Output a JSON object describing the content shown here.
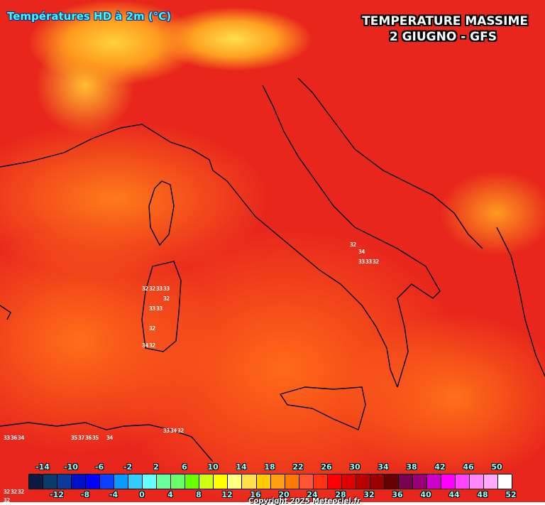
{
  "header": {
    "product_title": "Températures HD à 2m (°C)",
    "overlay_title_line1": "TEMPERATURE MASSIME",
    "overlay_title_line2": "2 GIUGNO - GFS"
  },
  "map": {
    "hotspots": [
      {
        "region": "campania",
        "values": [
          "32",
          "34",
          "33",
          "33",
          "32"
        ]
      },
      {
        "region": "sardinia",
        "values": [
          "32",
          "32",
          "33",
          "33",
          "32",
          "33",
          "33",
          "32",
          "34",
          "32"
        ]
      },
      {
        "region": "north-africa",
        "values": [
          "33",
          "36",
          "34",
          "35",
          "37",
          "36",
          "35",
          "34",
          "33",
          "34",
          "32"
        ]
      },
      {
        "region": "bottom-left",
        "values": [
          "32",
          "32",
          "32",
          "32"
        ]
      }
    ]
  },
  "legend": {
    "colors": [
      "#0a1a40",
      "#0a3a6a",
      "#0a3a9a",
      "#0010c8",
      "#0000ff",
      "#0a40ff",
      "#0a9aff",
      "#33ccff",
      "#66ffff",
      "#66ff99",
      "#66ff66",
      "#66ff00",
      "#ccff11",
      "#ffff00",
      "#ffff80",
      "#ffe04a",
      "#ffcc00",
      "#ffa010",
      "#ff7a00",
      "#ff5533",
      "#ff3311",
      "#ff0000",
      "#e00000",
      "#bb0000",
      "#990000",
      "#660000",
      "#770050",
      "#990077",
      "#cc00cc",
      "#ff00ff",
      "#ff44ff",
      "#ff88ff",
      "#ffaaff",
      "#ffffff"
    ],
    "top_labels": [
      "-14",
      "-10",
      "-6",
      "-2",
      "2",
      "6",
      "10",
      "14",
      "18",
      "22",
      "26",
      "30",
      "34",
      "38",
      "42",
      "46",
      "50"
    ],
    "bottom_labels": [
      "-12",
      "-8",
      "-4",
      "0",
      "4",
      "8",
      "12",
      "16",
      "20",
      "24",
      "28",
      "32",
      "36",
      "40",
      "44",
      "48",
      "52"
    ],
    "unit": "°C"
  },
  "footer": {
    "copyright": "Copyright 2025 Meteociel.fr"
  }
}
